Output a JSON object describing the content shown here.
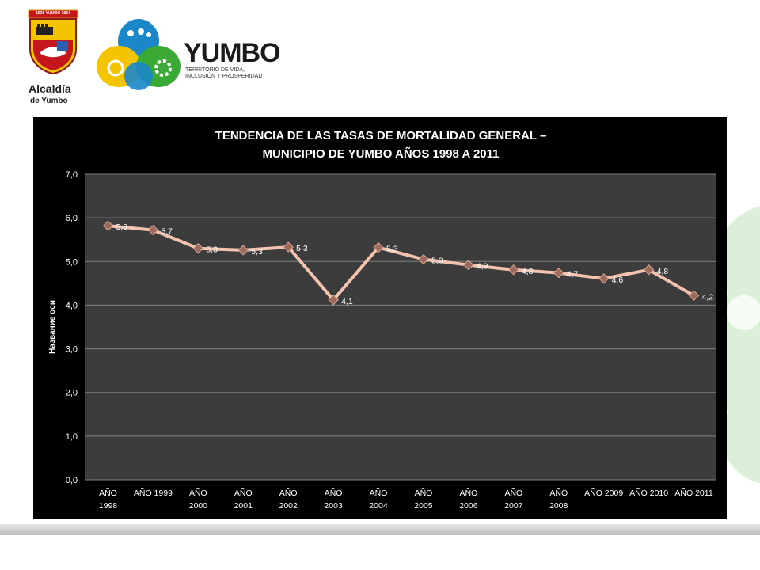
{
  "logos": {
    "left_banner": "1536 YUMBO 1864",
    "left_caption_line1": "Alcaldía",
    "left_caption_line2": "de Yumbo",
    "brand_name": "YUMBO",
    "brand_tagline_line1": "TERRITORIO DE VIDA,",
    "brand_tagline_line2": "INCLUSIÓN Y PROSPERIDAD"
  },
  "colors": {
    "plot_bg": "#3c3c3c",
    "frame_bg": "#000000",
    "line": "#f4c3b0",
    "marker": "#9c6a5c",
    "text": "#ffffff",
    "grid": "#808080",
    "watermark": "#dcefd8"
  },
  "chart_data": {
    "type": "line",
    "title_line1": "TENDENCIA DE LAS TASAS DE MORTALIDAD GENERAL –",
    "title_line2": "MUNICIPIO DE YUMBO AÑOS 1998 A 2011",
    "ylabel": "Название оси",
    "xlabel": "",
    "ylim": [
      0,
      7
    ],
    "yticks": [
      0,
      1,
      2,
      3,
      4,
      5,
      6,
      7
    ],
    "ytick_labels": [
      "0,0",
      "1,0",
      "2,0",
      "3,0",
      "4,0",
      "5,0",
      "6,0",
      "7,0"
    ],
    "grid": true,
    "categories": [
      [
        "AÑO",
        "1998"
      ],
      [
        "AÑO 1999"
      ],
      [
        "AÑO",
        "2000"
      ],
      [
        "AÑO",
        "2001"
      ],
      [
        "AÑO",
        "2002"
      ],
      [
        "AÑO",
        "2003"
      ],
      [
        "AÑO",
        "2004"
      ],
      [
        "AÑO",
        "2005"
      ],
      [
        "AÑO",
        "2006"
      ],
      [
        "AÑO",
        "2007"
      ],
      [
        "AÑO",
        "2008"
      ],
      [
        "AÑO 2009"
      ],
      [
        "AÑO 2010"
      ],
      [
        "AÑO 2011"
      ]
    ],
    "values": [
      5.82,
      5.72,
      5.3,
      5.26,
      5.33,
      4.12,
      5.32,
      5.05,
      4.92,
      4.81,
      4.74,
      4.61,
      4.81,
      4.22
    ],
    "data_labels": [
      "5,8",
      "5,7",
      "5,3",
      "5,3",
      "5,3",
      "4,1",
      "5,3",
      "5,0",
      "4,9",
      "4,8",
      "4,7",
      "4,6",
      "4,8",
      "4,2"
    ]
  }
}
